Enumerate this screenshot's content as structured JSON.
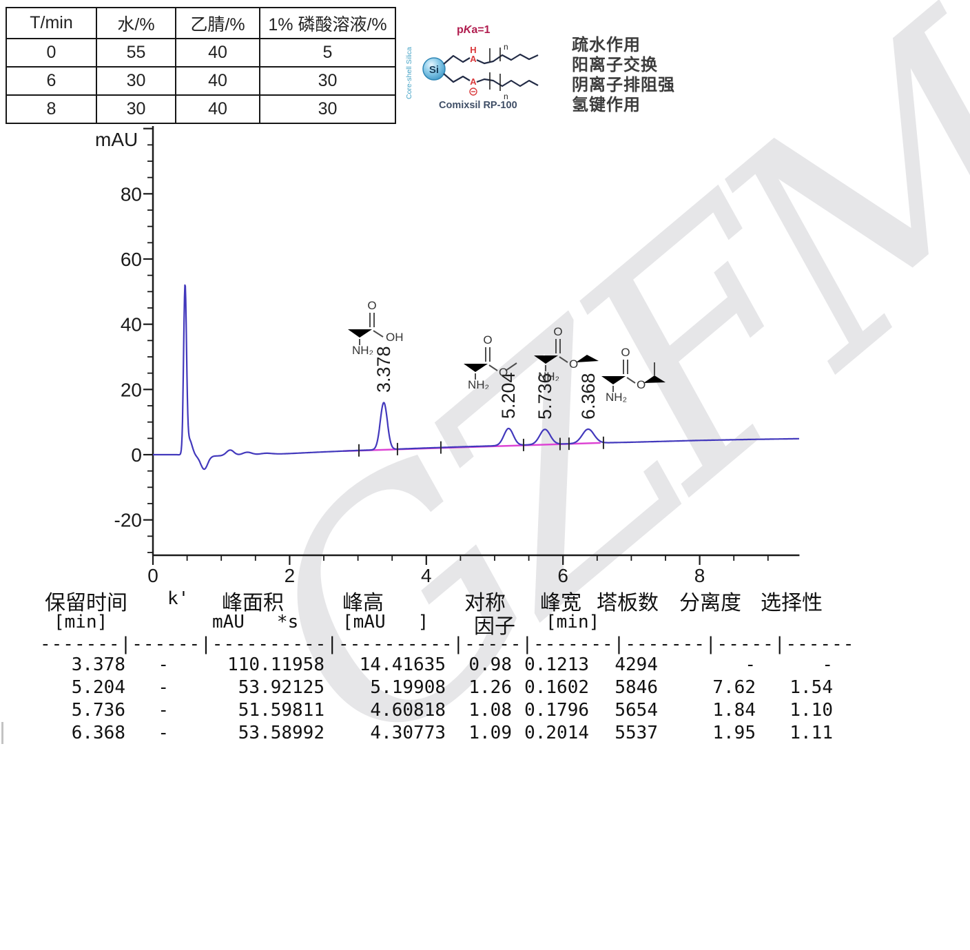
{
  "gradient_table": {
    "headers": [
      "T/min",
      "水/%",
      "乙腈/%",
      "1% 磷酸溶液/%"
    ],
    "rows": [
      [
        "0",
        "55",
        "40",
        "5"
      ],
      [
        "6",
        "30",
        "40",
        "30"
      ],
      [
        "8",
        "30",
        "40",
        "30"
      ]
    ]
  },
  "stationary_phase": {
    "pka_p": "p",
    "pka_k": "K",
    "pka_rest": "a=1",
    "core_shell": "Core-shell Silica",
    "si": "Si",
    "h": "H",
    "a_top": "A",
    "a_bottom": "A",
    "n_top": "n",
    "n_bottom": "n",
    "product": "Comixsil  RP-100"
  },
  "interactions": [
    "疏水作用",
    "阳离子交换",
    "阴离子排阻强",
    "氢键作用"
  ],
  "molecules": {
    "alanine": {
      "carbonyl_o": "O",
      "right_group": "OH",
      "amine": "NH₂"
    },
    "methyl_ester": {
      "carbonyl_o": "O",
      "right_group": "O",
      "amine": "NH₂"
    },
    "ethyl_ester": {
      "carbonyl_o": "O",
      "right_group": "O",
      "amine": "NH₂"
    },
    "isopropyl_ester": {
      "carbonyl_o": "O",
      "right_group": "O",
      "amine": "NH₂"
    }
  },
  "chart_data": {
    "type": "line",
    "title": "",
    "xlabel": "",
    "ylabel": "mAU",
    "xlim": [
      0,
      9.46
    ],
    "ylim": [
      -30.8,
      100.8
    ],
    "xticks": [
      0,
      2,
      4,
      6,
      8
    ],
    "yticks": [
      -20,
      0,
      20,
      40,
      60,
      80
    ],
    "x_minor_step": 0.5,
    "y_minor_step": 5,
    "grid": false,
    "trace_color": "#4238bc",
    "baseline_color": "#dd44d4",
    "axis_color": "#1a1a1a",
    "peaks": [
      {
        "rt": 3.378,
        "height": 14.41635,
        "width_min": 0.1213,
        "label": "3.378"
      },
      {
        "rt": 5.204,
        "height": 5.19908,
        "width_min": 0.1602,
        "label": "5.204"
      },
      {
        "rt": 5.736,
        "height": 4.60818,
        "width_min": 0.1796,
        "label": "5.736"
      },
      {
        "rt": 6.368,
        "height": 4.30773,
        "width_min": 0.2014,
        "label": "6.368"
      }
    ],
    "features": [
      {
        "t": 0.47,
        "h": 50.5,
        "s": 0.021
      },
      {
        "t": 0.53,
        "h": 5.0,
        "s": 0.045
      },
      {
        "t": 0.75,
        "h": -4.0,
        "s": 0.05
      },
      {
        "t": 1.13,
        "h": 1.7,
        "s": 0.055
      },
      {
        "t": 1.38,
        "h": 0.9,
        "s": 0.07
      },
      {
        "t": 1.65,
        "h": 0.4,
        "s": 0.09
      }
    ],
    "baseline_anchors": [
      [
        0,
        0
      ],
      [
        0.35,
        0
      ],
      [
        0.62,
        -0.5
      ],
      [
        0.9,
        -0.4
      ],
      [
        1.5,
        -0.1
      ],
      [
        2.0,
        0.35
      ],
      [
        2.5,
        0.85
      ],
      [
        3.0,
        1.3
      ],
      [
        3.5,
        1.65
      ],
      [
        4.0,
        2.05
      ],
      [
        4.5,
        2.4
      ],
      [
        5.0,
        2.72
      ],
      [
        5.5,
        3.02
      ],
      [
        6.0,
        3.3
      ],
      [
        6.5,
        3.6
      ],
      [
        7.0,
        3.82
      ],
      [
        7.5,
        4.1
      ],
      [
        8.0,
        4.38
      ],
      [
        8.75,
        4.68
      ],
      [
        9.46,
        4.9
      ]
    ],
    "baseline_segment": {
      "t1": 2.78,
      "t2": 6.55
    },
    "integration_marks": [
      3.014,
      3.578,
      4.213,
      5.423,
      5.957,
      6.088,
      6.592
    ]
  },
  "results_table": {
    "headers_line1": [
      "保留时间",
      "k'",
      "峰面积",
      "峰高",
      "对称",
      "峰宽",
      "塔板数",
      "分离度",
      "选择性"
    ],
    "headers_line2": [
      "[min]",
      "mAU   *s",
      "[mAU   ]",
      "因子",
      "[min]"
    ],
    "separator": "-------|------|----------|----------|-----|-------|-------|-----|------",
    "rows": [
      [
        "3.378",
        "-",
        "110.11958",
        "14.41635",
        "0.98",
        "0.1213",
        "4294",
        "-",
        "-"
      ],
      [
        "5.204",
        "-",
        "53.92125",
        "5.19908",
        "1.26",
        "0.1602",
        "5846",
        "7.62",
        "1.54"
      ],
      [
        "5.736",
        "-",
        "51.59811",
        "4.60818",
        "1.08",
        "0.1796",
        "5654",
        "1.84",
        "1.10"
      ],
      [
        "6.368",
        "-",
        "53.58992",
        "4.30773",
        "1.09",
        "0.2014",
        "5537",
        "1.95",
        "1.11"
      ]
    ]
  },
  "watermark": "GZFM"
}
